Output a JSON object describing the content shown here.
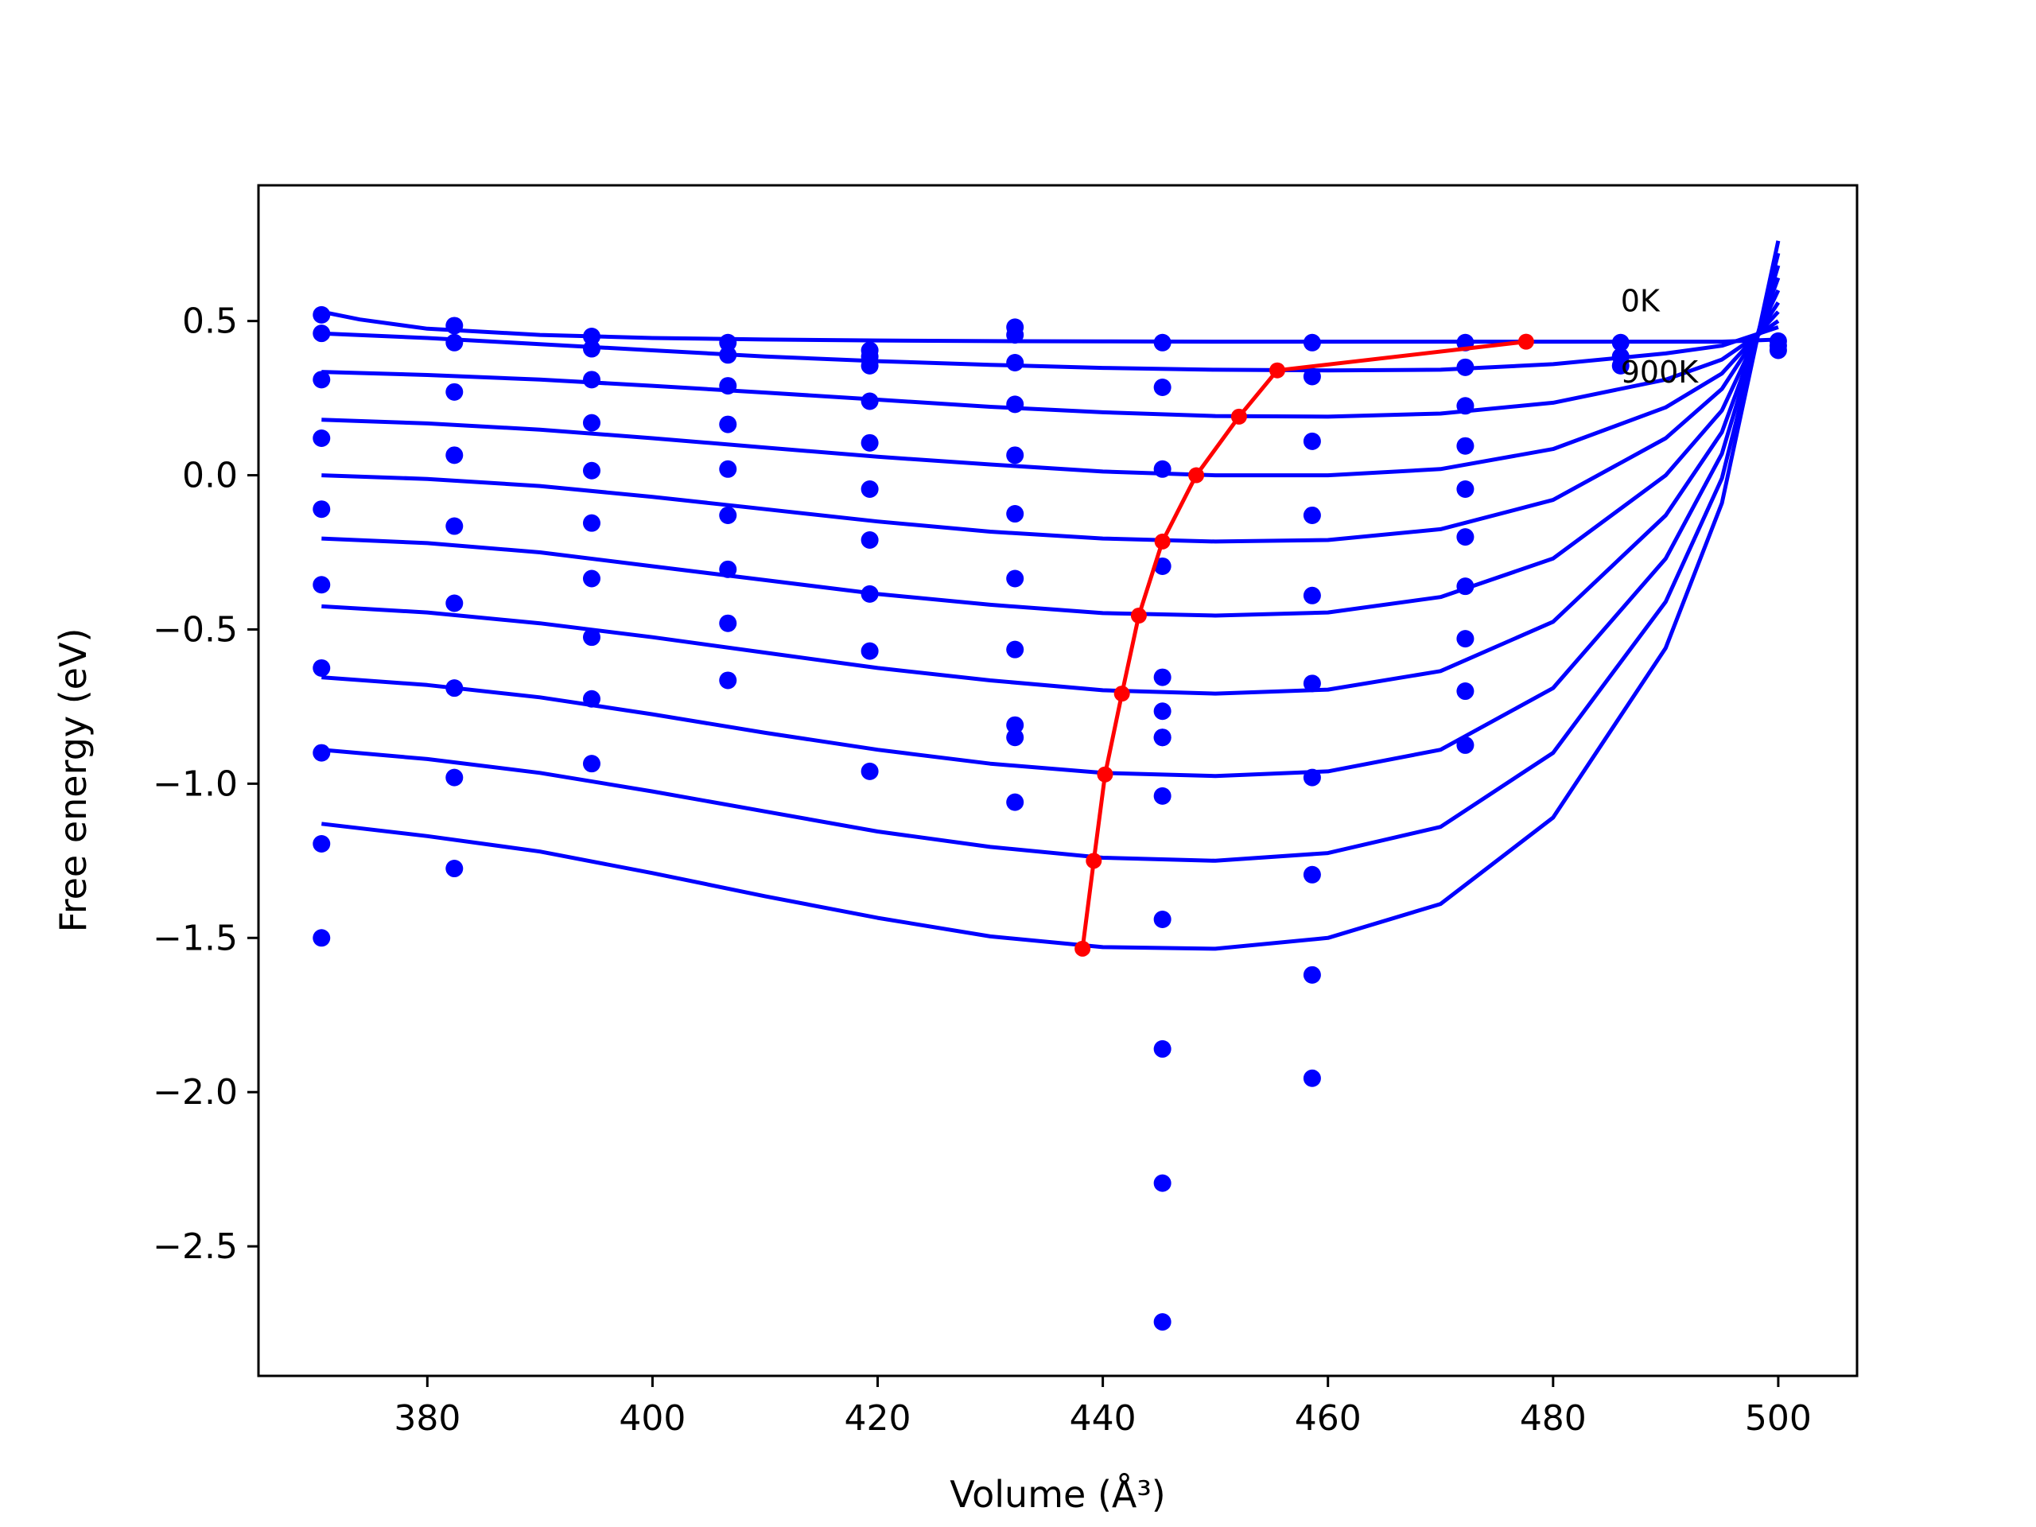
{
  "chart_data": {
    "type": "line",
    "title": "",
    "xlabel": "Volume (Å³)",
    "ylabel": "Free energy (eV)",
    "xlim": [
      365,
      507
    ],
    "ylim": [
      -2.92,
      0.94
    ],
    "xticks": [
      380,
      400,
      420,
      440,
      460,
      480,
      500
    ],
    "yticks": [
      0.5,
      0.0,
      -0.5,
      -1.0,
      -1.5,
      -2.0,
      -2.5
    ],
    "grid": false,
    "legend": "none",
    "annotations": [
      {
        "text": "0K",
        "x": 486.0,
        "y": 0.5
      },
      {
        "text": "900K",
        "x": 486.0,
        "y": 0.27
      }
    ],
    "colors": {
      "fit_curves": "#0000ff",
      "data_points": "#0000ff",
      "minimum_path": "#ff0000"
    },
    "series": [
      {
        "x": [
          370.6,
          374,
          380,
          390,
          400,
          410,
          420,
          430,
          440,
          450,
          460,
          470,
          480,
          490,
          495,
          500
        ],
        "y": [
          0.53,
          0.505,
          0.475,
          0.455,
          0.445,
          0.44,
          0.437,
          0.435,
          0.434,
          0.433,
          0.433,
          0.433,
          0.433,
          0.433,
          0.433,
          0.44
        ]
      },
      {
        "x": [
          370.6,
          380,
          390,
          400,
          410,
          420,
          430,
          440,
          450,
          460,
          470,
          480,
          490,
          495,
          500
        ],
        "y": [
          0.46,
          0.445,
          0.425,
          0.405,
          0.385,
          0.37,
          0.358,
          0.348,
          0.342,
          0.34,
          0.342,
          0.36,
          0.395,
          0.42,
          0.48
        ]
      },
      {
        "x": [
          370.6,
          380,
          390,
          400,
          410,
          420,
          430,
          440,
          450,
          460,
          470,
          480,
          490,
          495,
          500
        ],
        "y": [
          0.335,
          0.325,
          0.31,
          0.29,
          0.268,
          0.245,
          0.222,
          0.204,
          0.192,
          0.19,
          0.2,
          0.235,
          0.31,
          0.375,
          0.5
        ]
      },
      {
        "x": [
          370.6,
          380,
          390,
          400,
          410,
          420,
          430,
          440,
          450,
          460,
          470,
          480,
          490,
          495,
          500
        ],
        "y": [
          0.18,
          0.168,
          0.148,
          0.12,
          0.09,
          0.06,
          0.035,
          0.012,
          0.0,
          0.0,
          0.02,
          0.085,
          0.22,
          0.33,
          0.53
        ]
      },
      {
        "x": [
          370.6,
          380,
          390,
          400,
          410,
          420,
          430,
          440,
          450,
          460,
          470,
          480,
          490,
          495,
          500
        ],
        "y": [
          0.0,
          -0.012,
          -0.035,
          -0.07,
          -0.11,
          -0.15,
          -0.183,
          -0.205,
          -0.215,
          -0.21,
          -0.175,
          -0.08,
          0.12,
          0.28,
          0.56
        ]
      },
      {
        "x": [
          370.6,
          380,
          390,
          400,
          410,
          420,
          430,
          440,
          450,
          460,
          470,
          480,
          490,
          495,
          500
        ],
        "y": [
          -0.205,
          -0.22,
          -0.25,
          -0.295,
          -0.34,
          -0.385,
          -0.42,
          -0.447,
          -0.455,
          -0.445,
          -0.395,
          -0.27,
          -0.0,
          0.21,
          0.6
        ]
      },
      {
        "x": [
          370.6,
          380,
          390,
          400,
          410,
          420,
          430,
          440,
          450,
          460,
          470,
          480,
          490,
          495,
          500
        ],
        "y": [
          -0.425,
          -0.445,
          -0.48,
          -0.525,
          -0.575,
          -0.625,
          -0.665,
          -0.697,
          -0.708,
          -0.695,
          -0.635,
          -0.475,
          -0.13,
          0.14,
          0.64
        ]
      },
      {
        "x": [
          370.6,
          380,
          390,
          400,
          410,
          420,
          430,
          440,
          450,
          460,
          470,
          480,
          490,
          495,
          500
        ],
        "y": [
          -0.655,
          -0.68,
          -0.72,
          -0.775,
          -0.835,
          -0.89,
          -0.935,
          -0.965,
          -0.975,
          -0.96,
          -0.89,
          -0.69,
          -0.27,
          0.07,
          0.68
        ]
      },
      {
        "x": [
          370.6,
          380,
          390,
          400,
          410,
          420,
          430,
          440,
          450,
          460,
          470,
          480,
          490,
          495,
          500
        ],
        "y": [
          -0.89,
          -0.92,
          -0.965,
          -1.025,
          -1.09,
          -1.155,
          -1.205,
          -1.24,
          -1.25,
          -1.225,
          -1.14,
          -0.9,
          -0.41,
          -0.01,
          0.72
        ]
      },
      {
        "x": [
          370.6,
          380,
          390,
          400,
          410,
          420,
          430,
          440,
          450,
          460,
          470,
          480,
          490,
          495,
          500
        ],
        "y": [
          -1.13,
          -1.17,
          -1.22,
          -1.29,
          -1.365,
          -1.435,
          -1.495,
          -1.53,
          -1.535,
          -1.5,
          -1.39,
          -1.11,
          -0.56,
          -0.09,
          0.76
        ]
      },
      {
        "name": "",
        "style": "points",
        "x": [
          370.6,
          370.6,
          370.6,
          370.6,
          370.6,
          370.6,
          370.6,
          370.6,
          370.6,
          370.6,
          382.4,
          382.4,
          382.4,
          382.4,
          382.4,
          382.4,
          382.4,
          382.4,
          382.4,
          394.6,
          394.6,
          394.6,
          394.6,
          394.6,
          394.6,
          394.6,
          394.6,
          394.6,
          394.6,
          406.7,
          406.7,
          406.7,
          406.7,
          406.7,
          406.7,
          406.7,
          406.7,
          406.7,
          419.3,
          419.3,
          419.3,
          419.3,
          419.3,
          419.3,
          419.3,
          419.3,
          419.3,
          419.3,
          432.2,
          432.2,
          432.2,
          432.2,
          432.2,
          432.2,
          432.2,
          432.2,
          432.2,
          432.2,
          432.2,
          445.3,
          445.3,
          445.3,
          445.3,
          445.3,
          445.3,
          445.3,
          445.3,
          445.3,
          445.3,
          445.3,
          445.3,
          445.3,
          458.6,
          458.6,
          458.6,
          458.6,
          458.6,
          458.6,
          458.6,
          458.6,
          458.6,
          458.6,
          472.2,
          472.2,
          472.2,
          472.2,
          472.2,
          472.2,
          472.2,
          472.2,
          472.2,
          472.2,
          486.0,
          486.0,
          486.0,
          500.0,
          500.0,
          500.0
        ],
        "y": [
          0.52,
          0.46,
          0.31,
          0.12,
          -0.11,
          -0.355,
          -0.625,
          -0.9,
          -1.195,
          -1.5,
          0.485,
          0.43,
          0.27,
          0.065,
          -0.165,
          -0.415,
          -0.69,
          -0.98,
          -1.275,
          0.45,
          0.41,
          0.31,
          0.17,
          0.015,
          -0.155,
          -0.335,
          -0.525,
          -0.725,
          -0.935,
          0.43,
          0.39,
          0.29,
          0.165,
          0.02,
          -0.13,
          -0.305,
          -0.48,
          -0.665,
          0.405,
          0.385,
          0.355,
          0.24,
          0.105,
          -0.045,
          -0.21,
          -0.385,
          -0.57,
          -0.96,
          0.48,
          0.455,
          0.365,
          0.23,
          0.065,
          -0.125,
          -0.335,
          -0.565,
          -0.81,
          -1.06,
          -0.85,
          0.43,
          0.285,
          0.02,
          -0.295,
          -0.655,
          -1.04,
          -1.44,
          -1.86,
          -2.295,
          -2.745,
          -0.765,
          -0.85,
          -0.85,
          0.43,
          0.32,
          0.11,
          -0.13,
          -0.39,
          -0.675,
          -0.98,
          -1.295,
          -1.62,
          -1.955,
          0.43,
          0.35,
          0.225,
          0.095,
          -0.045,
          -0.2,
          -0.36,
          -0.53,
          -0.7,
          -0.875,
          0.43,
          0.385,
          0.355,
          0.435,
          0.42,
          0.405
        ]
      },
      {
        "name": "",
        "style": "line-markers",
        "color": "#ff0000",
        "x": [
          477.6,
          455.5,
          452.1,
          448.3,
          445.3,
          443.2,
          441.7,
          440.2,
          439.2,
          438.2
        ],
        "y": [
          0.433,
          0.34,
          0.19,
          0.0,
          -0.215,
          -0.455,
          -0.708,
          -0.97,
          -1.25,
          -1.535
        ]
      }
    ]
  }
}
